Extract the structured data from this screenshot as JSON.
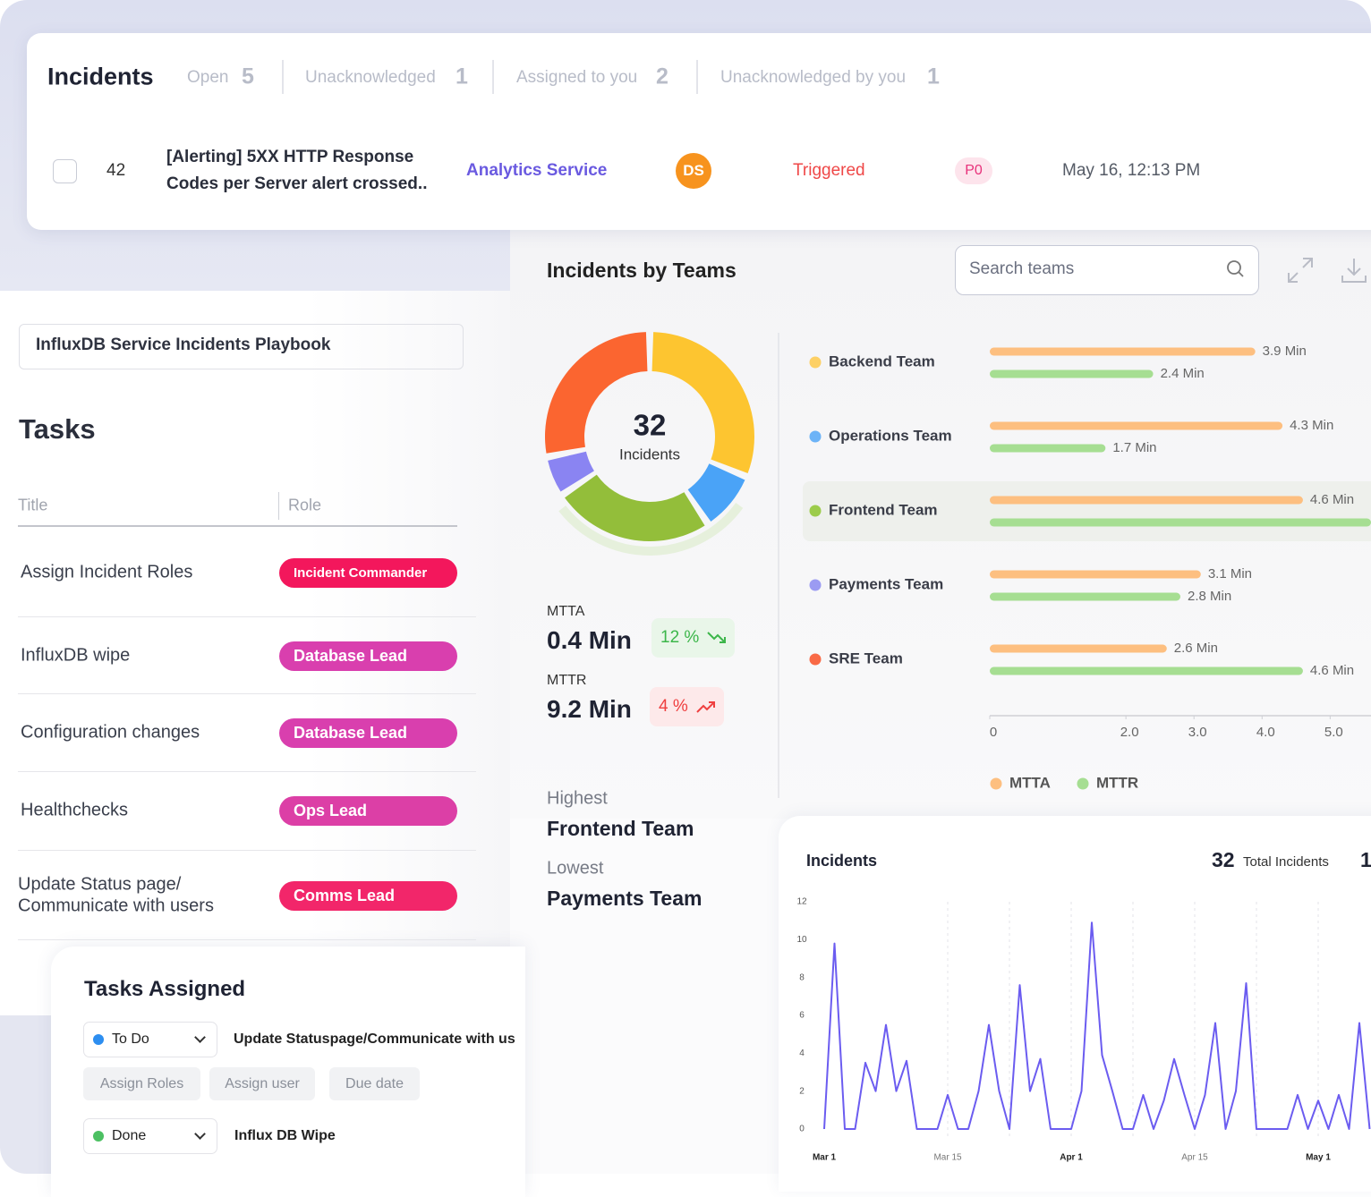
{
  "incidents": {
    "title": "Incidents",
    "tabs": [
      {
        "label": "Open",
        "count": 5
      },
      {
        "label": "Unacknowledged",
        "count": 1
      },
      {
        "label": "Assigned to you",
        "count": 2
      },
      {
        "label": "Unacknowledged by you",
        "count": 1
      }
    ],
    "row": {
      "id": 42,
      "title_lines": [
        "[Alerting] 5XX HTTP Response",
        "Codes per Server alert crossed.."
      ],
      "service": "Analytics Service",
      "assignee": "DS",
      "status": "Triggered",
      "priority": "P0",
      "time": "May 16, 12:13 PM"
    }
  },
  "playbook": {
    "name": "InfluxDB Service Incidents Playbook",
    "tasks_title": "Tasks",
    "columns": [
      "Title",
      "Role"
    ],
    "rows": [
      {
        "title": [
          "Assign Incident Roles"
        ],
        "role": "Incident Commander",
        "color": "#f3175c"
      },
      {
        "title": [
          "InfluxDB wipe"
        ],
        "role": "Database Lead",
        "color": "#d93fae"
      },
      {
        "title": [
          "Configuration changes"
        ],
        "role": "Database Lead",
        "color": "#d93fae"
      },
      {
        "title": [
          "Healthchecks"
        ],
        "role": "Ops Lead",
        "color": "#dc3fa6"
      },
      {
        "title": [
          "Update Status page/",
          "Communicate with users"
        ],
        "role": "Comms Lead",
        "color": "#f2266a"
      }
    ]
  },
  "tasks_assigned": {
    "title": "Tasks Assigned",
    "items": [
      {
        "status": "To Do",
        "status_color": "#2d8ef0",
        "task": "Update Statuspage/Communicate with us"
      },
      {
        "status": "Done",
        "status_color": "#4cc062",
        "task": "Influx DB Wipe"
      }
    ],
    "actions": [
      "Assign Roles",
      "Assign user",
      "Due date"
    ]
  },
  "teams_panel": {
    "title": "Incidents by Teams",
    "search_placeholder": "Search teams",
    "mtta": {
      "label": "MTTA",
      "value": "0.4 Min",
      "change": "12 %"
    },
    "mttr": {
      "label": "MTTR",
      "value": "9.2 Min",
      "change": "4 %"
    },
    "highest": {
      "label": "Highest",
      "team": "Frontend Team"
    },
    "lowest": {
      "label": "Lowest",
      "team": "Payments Team"
    }
  },
  "chart_data": [
    {
      "type": "pie",
      "center_value": 32,
      "center_label": "Incidents",
      "values": [
        10,
        3,
        8,
        2,
        9
      ],
      "colors": [
        "#fdc530",
        "#4aa3f7",
        "#93be3a",
        "#8a84f2",
        "#fb6530"
      ]
    },
    {
      "type": "bar",
      "orientation": "horizontal",
      "categories": [
        "Backend Team",
        "Operations Team",
        "Frontend Team",
        "Payments Team",
        "SRE Team"
      ],
      "category_colors": [
        "#fdd065",
        "#6cb3f7",
        "#9ccc4a",
        "#9b9bf2",
        "#f96a46"
      ],
      "highlight_index": 2,
      "series": [
        {
          "name": "MTTA",
          "color": "#fdbf80",
          "values": [
            3.9,
            4.3,
            4.6,
            3.1,
            2.6
          ],
          "value_labels": [
            "3.9 Min",
            "4.3 Min",
            "4.6 Min",
            "3.1 Min",
            "2.6 Min"
          ]
        },
        {
          "name": "MTTR",
          "color": "#a6de92",
          "values": [
            2.4,
            1.7,
            5.6,
            2.8,
            4.6
          ],
          "value_labels": [
            "2.4 Min",
            "1.7 Min",
            null,
            "2.8 Min",
            "4.6 Min"
          ]
        }
      ],
      "xlim": [
        0,
        5.6
      ],
      "xticks": [
        0,
        {
          "value": 2,
          "label": "2.0"
        },
        {
          "value": 3,
          "label": "3.0"
        },
        {
          "value": 4,
          "label": "4.0"
        },
        {
          "value": 5,
          "label": "5.0"
        }
      ]
    },
    {
      "type": "line",
      "title": "Incidents",
      "total": 32,
      "total_label": "Total Incidents",
      "secondary_value": 1,
      "color": "#6b5cf0",
      "categories": [
        "Mar 1",
        null,
        null,
        null,
        null,
        null,
        null,
        null,
        null,
        null,
        null,
        null,
        "Mar 15",
        null,
        null,
        null,
        null,
        null,
        null,
        null,
        null,
        null,
        null,
        null,
        "Apr 1",
        null,
        null,
        null,
        null,
        null,
        null,
        null,
        null,
        null,
        null,
        null,
        "Apr 15",
        null,
        null,
        null,
        null,
        null,
        null,
        null,
        null,
        null,
        null,
        null,
        "May 1",
        null,
        null,
        null,
        null,
        null
      ],
      "values": [
        0,
        9.8,
        0,
        0,
        3.5,
        2,
        5.5,
        2,
        3.6,
        0,
        0,
        0,
        1.8,
        0,
        0,
        2,
        5.5,
        2,
        0,
        7.6,
        2,
        3.7,
        0,
        0,
        0,
        2,
        10.9,
        3.9,
        2,
        0,
        0,
        1.8,
        0,
        1.5,
        3.7,
        1.8,
        0,
        1.8,
        5.6,
        0,
        2,
        7.7,
        0,
        0,
        0,
        0,
        1.8,
        0,
        1.5,
        0,
        1.8,
        0,
        5.6,
        0
      ],
      "ylim": [
        0,
        12
      ],
      "yticks": [
        0,
        2,
        4,
        6,
        8,
        10,
        12
      ]
    }
  ]
}
